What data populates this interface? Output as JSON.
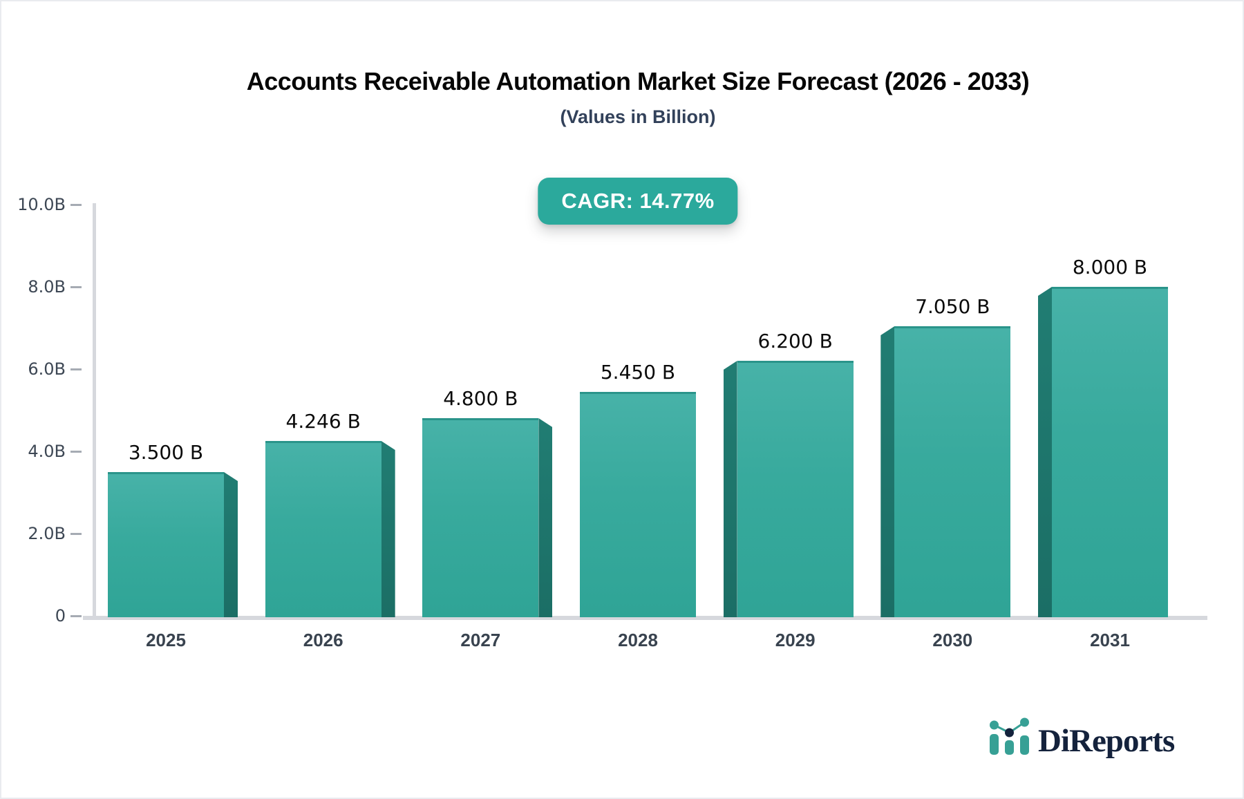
{
  "header": {
    "title": "Accounts Receivable Automation Market Size Forecast (2026 - 2033)",
    "subtitle": "(Values in Billion)"
  },
  "badge": {
    "label": "CAGR: 14.77%",
    "background_color": "#2ba99c",
    "text_color": "#ffffff"
  },
  "chart_data": {
    "type": "bar",
    "title": "Accounts Receivable Automation Market Size Forecast (2026 - 2033)",
    "subtitle": "(Values in Billion)",
    "categories": [
      "2025",
      "2026",
      "2027",
      "2028",
      "2029",
      "2030",
      "2031"
    ],
    "values": [
      3.5,
      4.246,
      4.8,
      5.45,
      6.2,
      7.05,
      8.0
    ],
    "value_labels": [
      "3.500 B",
      "4.246 B",
      "4.800 B",
      "5.450 B",
      "6.200 B",
      "7.050 B",
      "8.000 B"
    ],
    "xlabel": "",
    "ylabel": "",
    "ylim": [
      0,
      10
    ],
    "yticks": [
      {
        "v": 0,
        "label": "0"
      },
      {
        "v": 2,
        "label": "2.0B"
      },
      {
        "v": 4,
        "label": "4.0B"
      },
      {
        "v": 6,
        "label": "6.0B"
      },
      {
        "v": 8,
        "label": "8.0B"
      },
      {
        "v": 10,
        "label": "10.0B"
      }
    ],
    "grid": false,
    "legend": false,
    "colors": {
      "bar_front_top": "#47b2a8",
      "bar_front_bottom": "#2fa496",
      "bar_side": "#1f7d73",
      "axis_line": "#d6d8dd",
      "tick_dash": "#a6abb3",
      "tick_text": "#3d4754",
      "value_text": "#0b0b0b",
      "year_text": "#39434f"
    }
  },
  "logo": {
    "text": "DiReports",
    "icon": "bar-chart-trend-icon",
    "icon_color": "#37a095",
    "text_color": "#14223c"
  }
}
